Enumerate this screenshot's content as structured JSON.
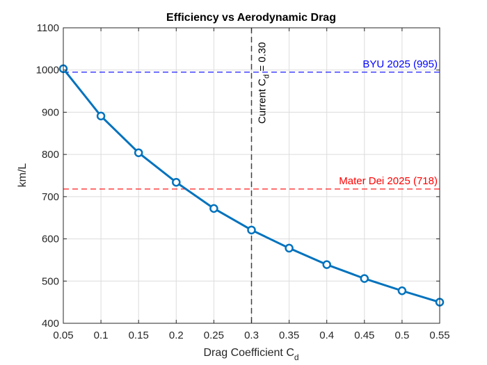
{
  "chart_data": {
    "type": "line",
    "title": "Efficiency vs Aerodynamic Drag",
    "xlabel": "Drag Coefficient C",
    "xlabel_sub": "d",
    "ylabel": "km/L",
    "xlim": [
      0.05,
      0.55
    ],
    "ylim": [
      400,
      1100
    ],
    "xticks": [
      0.05,
      0.1,
      0.15,
      0.2,
      0.25,
      0.3,
      0.35,
      0.4,
      0.45,
      0.5,
      0.55
    ],
    "xtick_labels": [
      "0.05",
      "0.1",
      "0.15",
      "0.2",
      "0.25",
      "0.3",
      "0.35",
      "0.4",
      "0.45",
      "0.5",
      "0.55"
    ],
    "yticks": [
      400,
      500,
      600,
      700,
      800,
      900,
      1000,
      1100
    ],
    "ytick_labels": [
      "400",
      "500",
      "600",
      "700",
      "800",
      "900",
      "1000",
      "1100"
    ],
    "grid": true,
    "series": [
      {
        "name": "Efficiency",
        "color": "#0072BD",
        "marker": "circle",
        "x": [
          0.05,
          0.1,
          0.15,
          0.2,
          0.25,
          0.3,
          0.35,
          0.4,
          0.45,
          0.5,
          0.55
        ],
        "y": [
          1003,
          891,
          804,
          734,
          672,
          621,
          578,
          539,
          506,
          477,
          450
        ]
      }
    ],
    "reference_lines": [
      {
        "name": "byu",
        "label": "BYU 2025 (995)",
        "y": 995,
        "color": "#0000FF"
      },
      {
        "name": "mater-dei",
        "label": "Mater Dei 2025 (718)",
        "y": 718,
        "color": "#FF0000"
      }
    ],
    "vertical_line": {
      "x": 0.3,
      "label_prefix": "Current C",
      "label_sub": "d",
      "label_suffix": " = 0.30",
      "color": "#404040"
    }
  }
}
